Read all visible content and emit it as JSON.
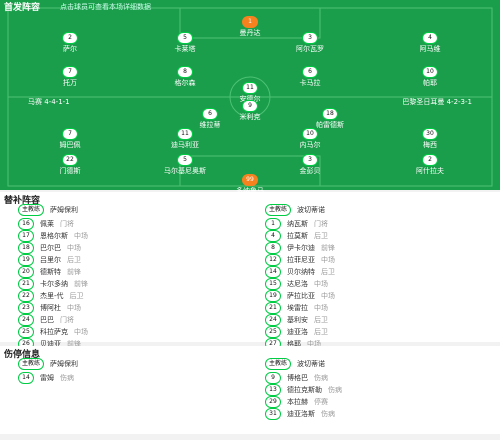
{
  "header": {
    "title": "首发阵容",
    "subtitle": "点击球员可查看本场详细数据"
  },
  "pitch": {
    "home_team": "马赛",
    "home_formation": "4-4-1-1",
    "away_team": "巴黎圣日耳曼",
    "away_formation": "4-2-3-1",
    "home_players": [
      {
        "number": "1",
        "name": "曼丹达"
      },
      {
        "number": "2",
        "name": "萨尔"
      },
      {
        "number": "5",
        "name": "卡莱塔"
      },
      {
        "number": "3",
        "name": "阿尔瓦罗"
      },
      {
        "number": "4",
        "name": "阿马维"
      },
      {
        "number": "7",
        "name": "托万"
      },
      {
        "number": "8",
        "name": "格尔森"
      },
      {
        "number": "6",
        "name": "卡马拉"
      },
      {
        "number": "10",
        "name": "帕耶"
      },
      {
        "number": "11",
        "name": "安德尔"
      },
      {
        "number": "9",
        "name": "米利克"
      }
    ],
    "away_players": [
      {
        "number": "6",
        "name": "维拉蒂"
      },
      {
        "number": "18",
        "name": "帕雷德斯"
      },
      {
        "number": "7",
        "name": "姆巴佩"
      },
      {
        "number": "11",
        "name": "迪马利亚"
      },
      {
        "number": "10",
        "name": "内马尔"
      },
      {
        "number": "30",
        "name": "梅西"
      },
      {
        "number": "22",
        "name": "门德斯"
      },
      {
        "number": "5",
        "name": "马尔基尼奥斯"
      },
      {
        "number": "3",
        "name": "金彭贝"
      },
      {
        "number": "2",
        "name": "阿什拉夫"
      },
      {
        "number": "99",
        "name": "多纳鲁马"
      }
    ]
  },
  "bench": {
    "title": "替补阵容",
    "home": {
      "coach_label": "主教练",
      "coach": "萨姆保利",
      "players": [
        {
          "number": "16",
          "name": "佩莱",
          "position": "门将"
        },
        {
          "number": "17",
          "name": "恩格尔斯",
          "position": "中场"
        },
        {
          "number": "18",
          "name": "巴尔巴",
          "position": "中场"
        },
        {
          "number": "19",
          "name": "吕里尔",
          "position": "后卫"
        },
        {
          "number": "20",
          "name": "德斯特",
          "position": "前锋"
        },
        {
          "number": "21",
          "name": "卡尔多纳",
          "position": "前锋"
        },
        {
          "number": "22",
          "name": "杰里-代",
          "position": "后卫"
        },
        {
          "number": "23",
          "name": "博阿杜",
          "position": "中场"
        },
        {
          "number": "24",
          "name": "巴巴",
          "position": "门将"
        },
        {
          "number": "25",
          "name": "科拉萨克",
          "position": "中场"
        },
        {
          "number": "26",
          "name": "贝迪亚",
          "position": "前锋"
        }
      ]
    },
    "away": {
      "coach_label": "主教练",
      "coach": "波切蒂诺",
      "players": [
        {
          "number": "1",
          "name": "纳瓦斯",
          "position": "门将"
        },
        {
          "number": "4",
          "name": "拉莫斯",
          "position": "后卫"
        },
        {
          "number": "8",
          "name": "伊卡尔迪",
          "position": "前锋"
        },
        {
          "number": "12",
          "name": "拉菲尼亚",
          "position": "中场"
        },
        {
          "number": "14",
          "name": "贝尔纳特",
          "position": "后卫"
        },
        {
          "number": "15",
          "name": "达尼洛",
          "position": "中场"
        },
        {
          "number": "19",
          "name": "萨拉比亚",
          "position": "中场"
        },
        {
          "number": "21",
          "name": "埃雷拉",
          "position": "中场"
        },
        {
          "number": "24",
          "name": "基利安",
          "position": "后卫"
        },
        {
          "number": "25",
          "name": "迪亚洛",
          "position": "后卫"
        },
        {
          "number": "27",
          "name": "格耶",
          "position": "中场"
        }
      ]
    }
  },
  "injuries": {
    "title": "伤停信息",
    "home": {
      "coach_label": "主教练",
      "coach": "萨姆保利",
      "players": [
        {
          "number": "14",
          "name": "雷姆",
          "position": "伤病"
        }
      ]
    },
    "away": {
      "coach_label": "主教练",
      "coach": "波切蒂诺",
      "players": [
        {
          "number": "9",
          "name": "博格巴",
          "position": "伤病"
        },
        {
          "number": "13",
          "name": "德拉克斯勒",
          "position": "伤病"
        },
        {
          "number": "29",
          "name": "本拉赫",
          "position": "停赛"
        },
        {
          "number": "31",
          "name": "迪亚洛斯",
          "position": "伤病"
        }
      ]
    }
  }
}
